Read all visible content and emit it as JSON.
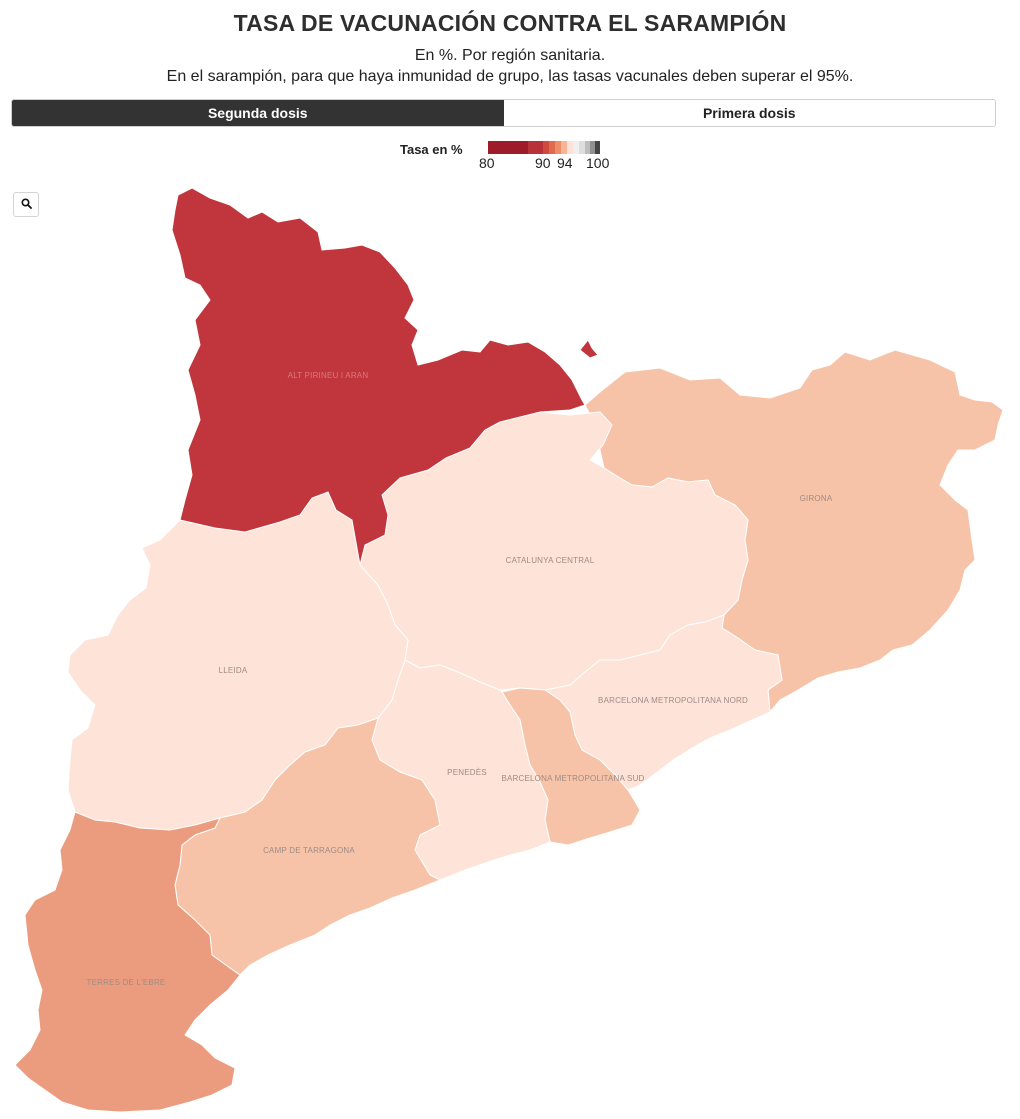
{
  "title": "TASA DE VACUNACIÓN CONTRA EL SARAMPIÓN",
  "subtitle_line1": "En %. Por región sanitaria.",
  "subtitle_line2": "En el sarampión, para que haya inmunidad de grupo, las tasas vacunales deben superar el 95%.",
  "tabs": [
    {
      "label": "Segunda dosis",
      "active": true
    },
    {
      "label": "Primera dosis",
      "active": false
    }
  ],
  "legend": {
    "title": "Tasa en %",
    "ticks": [
      "80",
      "90",
      "94",
      "100"
    ],
    "colors": [
      "#9e1b2a",
      "#b8323a",
      "#d9563f",
      "#ef8c6a",
      "#f7c2a8",
      "#fde3d7",
      "#dedede",
      "#bdbdbd",
      "#8f8f8f",
      "#444444"
    ]
  },
  "zoom_icon": "search-icon",
  "regions": {
    "alt_pirineu": {
      "label": "ALT PIRINEU I ARAN",
      "color": "#c0363c"
    },
    "girona": {
      "label": "GIRONA",
      "color": "#f7c3a8"
    },
    "catalunya_central": {
      "label": "CATALUNYA CENTRAL",
      "color": "#fde3d8"
    },
    "lleida": {
      "label": "LLEIDA",
      "color": "#fde3d8"
    },
    "barcelona_nord": {
      "label": "BARCELONA METROPOLITANA NORD",
      "color": "#fde3d8"
    },
    "penedes": {
      "label": "PENEDÈS",
      "color": "#fde3d8"
    },
    "barcelona_sud": {
      "label": "BARCELONA METROPOLITANA SUD",
      "color": "#f7c3a8"
    },
    "camp_tarragona": {
      "label": "CAMP DE TARRAGONA",
      "color": "#f7c3a8"
    },
    "terres_ebre": {
      "label": "TERRES DE L'EBRE",
      "color": "#ec9c7e"
    }
  }
}
